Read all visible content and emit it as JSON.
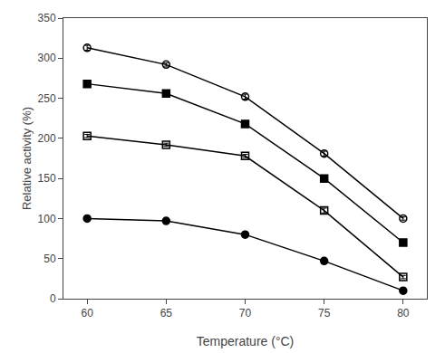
{
  "chart_data": {
    "type": "line",
    "x": [
      60,
      65,
      70,
      75,
      80
    ],
    "series": [
      {
        "color": "black",
        "marker": "circle",
        "values": [
          100,
          97,
          80,
          47,
          10
        ],
        "errors": [
          2,
          3,
          2,
          2,
          2
        ]
      },
      {
        "color": "black",
        "marker": "square-open",
        "values": [
          203,
          192,
          178,
          110,
          27
        ],
        "errors": [
          2,
          2,
          2,
          3,
          2
        ]
      },
      {
        "color": "black",
        "marker": "square",
        "values": [
          268,
          256,
          218,
          150,
          70
        ],
        "errors": [
          2,
          2,
          3,
          3,
          2
        ]
      },
      {
        "color": "black",
        "marker": "circle-open",
        "values": [
          313,
          292,
          252,
          181,
          100
        ],
        "errors": [
          3,
          2,
          3,
          3,
          2
        ]
      }
    ],
    "xlabel": "Temperature (°C)",
    "ylabel": "Relative activity (%)",
    "xlim": [
      58.5,
      81.5
    ],
    "xticks": [
      60,
      65,
      70,
      75,
      80
    ],
    "ylim": [
      0,
      350
    ],
    "yticks": [
      0,
      50,
      100,
      150,
      200,
      250,
      300,
      350
    ],
    "grid": false
  }
}
